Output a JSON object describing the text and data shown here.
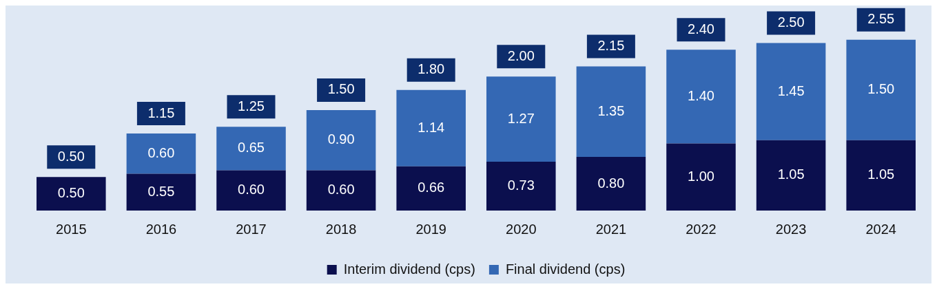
{
  "chart_data": {
    "type": "bar",
    "stacked": true,
    "categories": [
      "2015",
      "2016",
      "2017",
      "2018",
      "2019",
      "2020",
      "2021",
      "2022",
      "2023",
      "2024"
    ],
    "series": [
      {
        "name": "Interim dividend (cps)",
        "color": "#0b0f4e",
        "values": [
          0.5,
          0.55,
          0.6,
          0.6,
          0.66,
          0.73,
          0.8,
          1.0,
          1.05,
          1.05
        ],
        "value_labels": [
          "0.50",
          "0.55",
          "0.60",
          "0.60",
          "0.66",
          "0.73",
          "0.80",
          "1.00",
          "1.05",
          "1.05"
        ]
      },
      {
        "name": "Final dividend (cps)",
        "color": "#3468b4",
        "values": [
          null,
          0.6,
          0.65,
          0.9,
          1.14,
          1.27,
          1.35,
          1.4,
          1.45,
          1.5
        ],
        "value_labels": [
          null,
          "0.60",
          "0.65",
          "0.90",
          "1.14",
          "1.27",
          "1.35",
          "1.40",
          "1.45",
          "1.50"
        ]
      }
    ],
    "totals": [
      "0.50",
      "1.15",
      "1.25",
      "1.50",
      "1.80",
      "2.00",
      "2.15",
      "2.40",
      "2.50",
      "2.55"
    ],
    "legend": "bottom",
    "grid": false
  }
}
